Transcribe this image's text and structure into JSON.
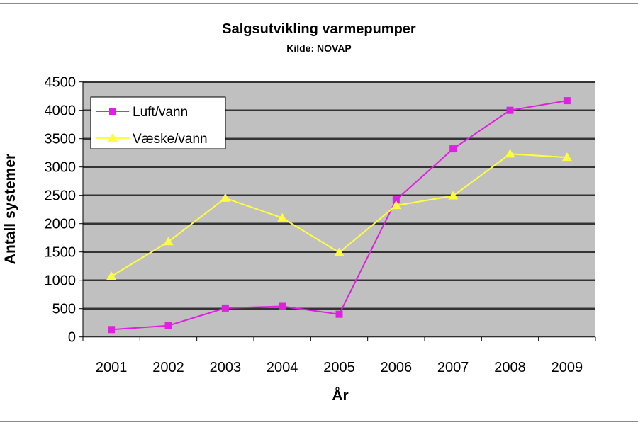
{
  "chart_data": {
    "type": "line",
    "title": "Salgsutvikling varmepumper",
    "subtitle": "Kilde: NOVAP",
    "xlabel": "År",
    "ylabel": "Antall systemer",
    "categories": [
      "2001",
      "2002",
      "2003",
      "2004",
      "2005",
      "2006",
      "2007",
      "2008",
      "2009"
    ],
    "ylim": [
      0,
      4500
    ],
    "yticks": [
      0,
      500,
      1000,
      1500,
      2000,
      2500,
      3000,
      3500,
      4000,
      4500
    ],
    "grid": true,
    "legend": "top-left",
    "plot_background": "#c0c0c0",
    "series": [
      {
        "name": "Luft/vann",
        "color": "#e020e0",
        "marker": "square",
        "values": [
          130,
          200,
          510,
          540,
          400,
          2420,
          3320,
          4000,
          4170
        ]
      },
      {
        "name": "Væske/vann",
        "color": "#ffff40",
        "marker": "triangle",
        "values": [
          1070,
          1680,
          2450,
          2100,
          1490,
          2320,
          2490,
          3230,
          3170
        ]
      }
    ]
  }
}
